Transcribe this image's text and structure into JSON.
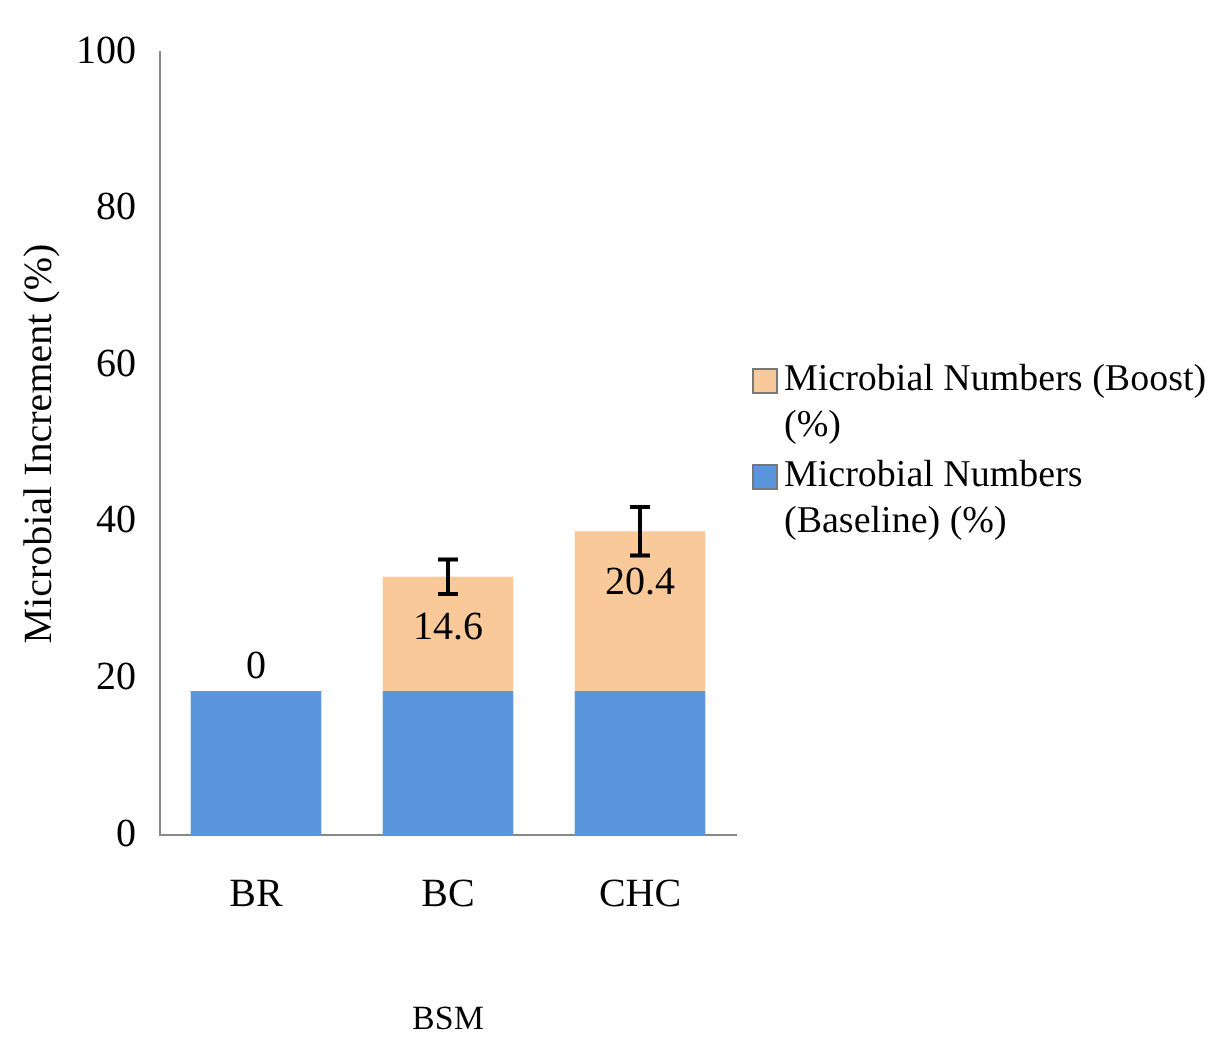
{
  "chart_data": {
    "type": "bar",
    "stacked": true,
    "xlabel": "BSM",
    "ylabel": "Microbial Increment (%)",
    "categories": [
      "BR",
      "BC",
      "CHC"
    ],
    "series": [
      {
        "name": "Microbial Numbers (Baseline) (%)",
        "color": "#5b96dc",
        "values": [
          18.4,
          18.4,
          18.4
        ]
      },
      {
        "name": "Microbial Numbers (Boost) (%)",
        "color": "#fac999",
        "values": [
          0,
          14.6,
          20.4
        ],
        "errors": [
          null,
          2.2,
          3.1
        ],
        "value_labels": [
          "0",
          "14.6",
          "20.4"
        ]
      }
    ],
    "ylim": [
      0,
      100
    ],
    "yticks": [
      0,
      20,
      40,
      60,
      80,
      100
    ],
    "grid": false,
    "legend": "right"
  }
}
